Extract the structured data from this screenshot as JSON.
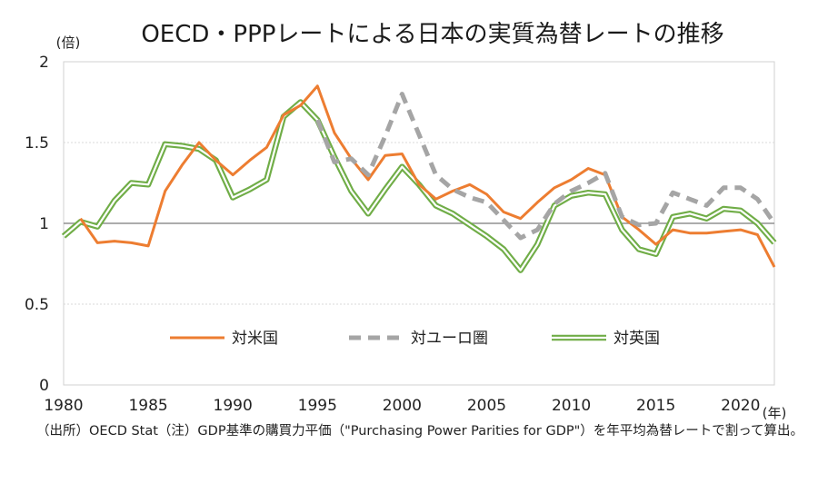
{
  "chart_data": {
    "type": "line",
    "title": "OECD・PPPレートによる日本の実質為替レートの推移",
    "y_unit": "(倍)",
    "x_unit": "(年)",
    "xlim": [
      1980,
      2022
    ],
    "ylim": [
      0,
      2
    ],
    "x_ticks": [
      1980,
      1985,
      1990,
      1995,
      2000,
      2005,
      2010,
      2015,
      2020
    ],
    "y_ticks": [
      0,
      0.5,
      1,
      1.5,
      2
    ],
    "y_tick_labels": [
      "0",
      "0.5",
      "1",
      "1.5",
      "2"
    ],
    "grid": true,
    "reference_line": 1,
    "legend_position": "inside-lower-middle",
    "series": [
      {
        "name": "対米国",
        "color": "#ED7D31",
        "style": "solid",
        "x": [
          1981,
          1982,
          1983,
          1984,
          1985,
          1986,
          1987,
          1988,
          1989,
          1990,
          1991,
          1992,
          1993,
          1994,
          1995,
          1996,
          1997,
          1998,
          1999,
          2000,
          2001,
          2002,
          2003,
          2004,
          2005,
          2006,
          2007,
          2008,
          2009,
          2010,
          2011,
          2012,
          2013,
          2014,
          2015,
          2016,
          2017,
          2018,
          2019,
          2020,
          2021,
          2022
        ],
        "values": [
          1.03,
          0.88,
          0.89,
          0.88,
          0.86,
          1.2,
          1.36,
          1.5,
          1.39,
          1.3,
          1.39,
          1.47,
          1.67,
          1.73,
          1.85,
          1.56,
          1.4,
          1.27,
          1.42,
          1.43,
          1.24,
          1.15,
          1.2,
          1.24,
          1.18,
          1.07,
          1.03,
          1.13,
          1.22,
          1.27,
          1.34,
          1.3,
          1.04,
          0.96,
          0.87,
          0.96,
          0.94,
          0.94,
          0.95,
          0.96,
          0.93,
          0.73
        ]
      },
      {
        "name": "対ユーロ圏",
        "color": "#A5A5A5",
        "style": "dashed",
        "x": [
          1995,
          1996,
          1997,
          1998,
          1999,
          2000,
          2001,
          2002,
          2003,
          2004,
          2005,
          2006,
          2007,
          2008,
          2009,
          2010,
          2011,
          2012,
          2013,
          2014,
          2015,
          2016,
          2017,
          2018,
          2019,
          2020,
          2021,
          2022
        ],
        "values": [
          1.64,
          1.38,
          1.4,
          1.3,
          1.54,
          1.8,
          1.55,
          1.3,
          1.21,
          1.16,
          1.13,
          1.02,
          0.91,
          0.96,
          1.12,
          1.2,
          1.25,
          1.31,
          1.04,
          0.99,
          1.0,
          1.19,
          1.15,
          1.11,
          1.22,
          1.22,
          1.15,
          1.0
        ]
      },
      {
        "name": "対英国",
        "color": "#70AD47",
        "style": "double",
        "x": [
          1980,
          1981,
          1982,
          1983,
          1984,
          1985,
          1986,
          1987,
          1988,
          1989,
          1990,
          1991,
          1992,
          1993,
          1994,
          1995,
          1996,
          1997,
          1998,
          1999,
          2000,
          2001,
          2002,
          2003,
          2004,
          2005,
          2006,
          2007,
          2008,
          2009,
          2010,
          2011,
          2012,
          2013,
          2014,
          2015,
          2016,
          2017,
          2018,
          2019,
          2020,
          2021,
          2022
        ],
        "values": [
          0.92,
          1.01,
          0.98,
          1.14,
          1.25,
          1.24,
          1.49,
          1.48,
          1.46,
          1.39,
          1.16,
          1.21,
          1.27,
          1.66,
          1.75,
          1.64,
          1.41,
          1.2,
          1.06,
          1.21,
          1.35,
          1.24,
          1.11,
          1.06,
          0.99,
          0.92,
          0.84,
          0.71,
          0.87,
          1.11,
          1.17,
          1.19,
          1.18,
          0.96,
          0.84,
          0.81,
          1.04,
          1.06,
          1.03,
          1.09,
          1.08,
          1.0,
          0.88
        ]
      }
    ]
  },
  "source_note": "（出所）OECD Stat（注）GDP基準の購買力平価（\"Purchasing Power Parities for GDP\"）を年平均為替レートで割って算出。"
}
